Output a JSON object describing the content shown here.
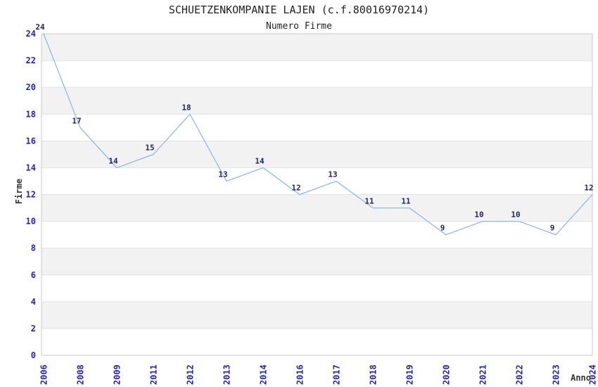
{
  "chart_data": {
    "type": "line",
    "title": "SCHUETZENKOMPANIE LAJEN (c.f.80016970214)",
    "subtitle": "Numero Firme",
    "xlabel": "Anno",
    "ylabel": "Firme",
    "categories": [
      "2006",
      "2008",
      "2009",
      "2011",
      "2012",
      "2013",
      "2014",
      "2016",
      "2017",
      "2018",
      "2019",
      "2020",
      "2021",
      "2022",
      "2023",
      "2024"
    ],
    "values": [
      24,
      17,
      14,
      15,
      18,
      13,
      14,
      12,
      13,
      11,
      11,
      9,
      10,
      10,
      9,
      12
    ],
    "yticks": [
      0,
      2,
      4,
      6,
      8,
      10,
      12,
      14,
      16,
      18,
      20,
      22,
      24
    ],
    "ylim": [
      0,
      24
    ],
    "grid": "horizontal",
    "legend": "none",
    "banding": "alternate horizontal bands",
    "colors": {
      "line": "#88b4e8",
      "tick_label": "#2222cc",
      "data_label": "#1f1f72",
      "title": "#222222",
      "axis_title": "#333333",
      "band": "#f2f2f2",
      "gridline": "#e2e2e2",
      "axis_border": "#c8c8c8",
      "background": "#ffffff"
    }
  }
}
